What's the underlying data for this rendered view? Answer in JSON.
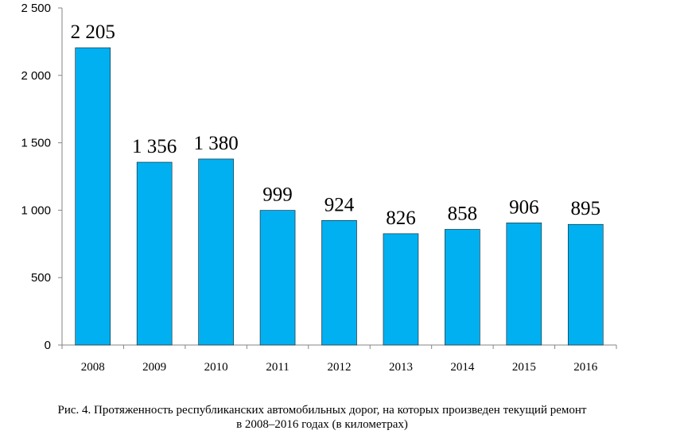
{
  "chart_data": {
    "type": "bar",
    "categories": [
      "2008",
      "2009",
      "2010",
      "2011",
      "2012",
      "2013",
      "2014",
      "2015",
      "2016"
    ],
    "values": [
      2205,
      1356,
      1380,
      999,
      924,
      826,
      858,
      906,
      895
    ],
    "value_labels": [
      "2 205",
      "1 356",
      "1 380",
      "999",
      "924",
      "826",
      "858",
      "906",
      "895"
    ],
    "ylim": [
      0,
      2500
    ],
    "yticks": [
      0,
      500,
      1000,
      1500,
      2000,
      2500
    ],
    "ytick_labels": [
      "0",
      "500",
      "1 000",
      "1 500",
      "2 000",
      "2 500"
    ],
    "bar_color": "#00B0F0",
    "grid": false,
    "legend": "none"
  },
  "caption": {
    "line1": "Рис. 4. Протяженность республиканских автомобильных дорог, на которых произведен текущий ремонт",
    "line2": "в 2008–2016 годах (в километрах)"
  }
}
